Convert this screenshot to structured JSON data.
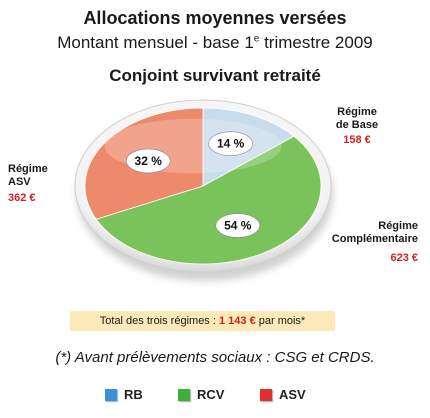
{
  "header": {
    "title": "Allocations moyennes versées",
    "subtitle_main": "Montant mensuel - base 1",
    "subtitle_sup": "e",
    "subtitle_end": " trimestre 2009"
  },
  "chart_data": {
    "type": "pie",
    "title": "Conjoint survivant retraité",
    "slices": [
      {
        "key": "RB",
        "label_line1": "Régime",
        "label_line2": "de Base",
        "percent": 14,
        "percent_label": "14 %",
        "amount": "158 €",
        "color": "#c9dcee"
      },
      {
        "key": "RCV",
        "label_line1": "Régime",
        "label_line2": "Complémentaire",
        "percent": 54,
        "percent_label": "54 %",
        "amount": "623 €",
        "color": "#7ac35a"
      },
      {
        "key": "ASV",
        "label_line1": "Régime",
        "label_line2": "ASV",
        "percent": 32,
        "percent_label": "32 %",
        "amount": "362 €",
        "color": "#ee8a6c"
      }
    ],
    "total": {
      "prefix": "Total des trois régimes : ",
      "value": "1 143 €",
      "suffix": " par mois*"
    }
  },
  "footnote": "(*) Avant prélèvements sociaux : CSG et CRDS.",
  "legend": [
    {
      "label": "RB",
      "color": "#3b8fd6"
    },
    {
      "label": "RCV",
      "color": "#3fae3a"
    },
    {
      "label": "ASV",
      "color": "#e03131"
    }
  ]
}
